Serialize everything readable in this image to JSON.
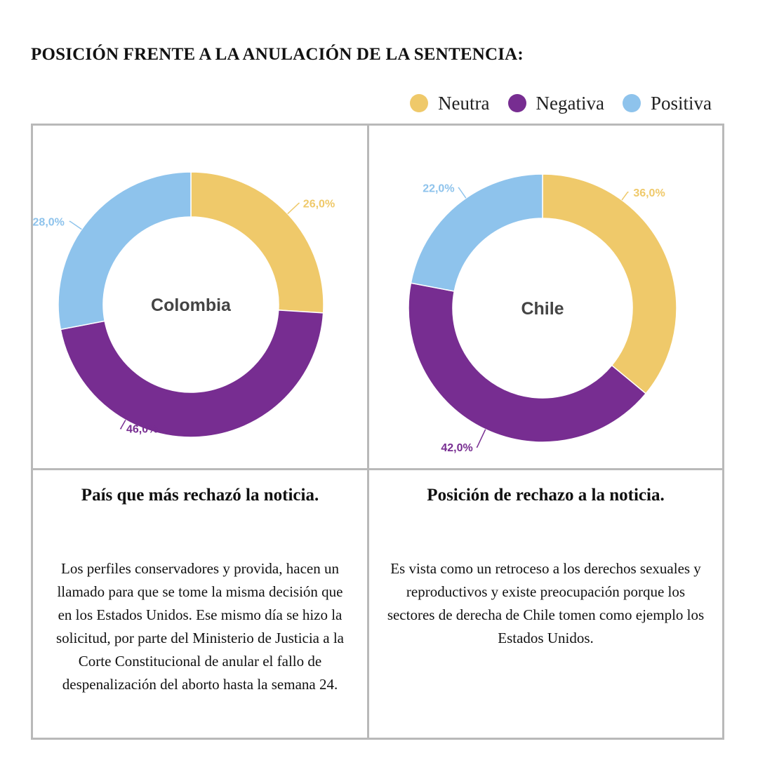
{
  "title": "POSICIÓN FRENTE A LA ANULACIÓN DE LA SENTENCIA:",
  "legend": [
    {
      "label": "Neutra",
      "color": "#efc96a"
    },
    {
      "label": "Negativa",
      "color": "#772d91"
    },
    {
      "label": "Positiva",
      "color": "#8ec3ec"
    }
  ],
  "chart_data": [
    {
      "type": "pie",
      "center_label": "Colombia",
      "categories": [
        "Neutra",
        "Negativa",
        "Positiva"
      ],
      "values": [
        26.0,
        46.0,
        28.0
      ],
      "value_labels": [
        "26,0%",
        "46,0%",
        "28,0%"
      ],
      "colors": [
        "#efc96a",
        "#772d91",
        "#8ec3ec"
      ]
    },
    {
      "type": "pie",
      "center_label": "Chile",
      "categories": [
        "Neutra",
        "Negativa",
        "Positiva"
      ],
      "values": [
        36.0,
        42.0,
        22.0
      ],
      "value_labels": [
        "36,0%",
        "42,0%",
        "22,0%"
      ],
      "colors": [
        "#efc96a",
        "#772d91",
        "#8ec3ec"
      ]
    }
  ],
  "panels": [
    {
      "heading": "País que más rechazó la noticia.",
      "body": "Los perfiles conservadores y provida, hacen un llamado para que se tome la misma decisión que en los Estados Unidos. Ese mismo día se hizo la solicitud, por parte del Ministerio de Justicia a la Corte Constitucional de anular el fallo de despenalización del aborto hasta la semana 24."
    },
    {
      "heading": "Posición de rechazo a la noticia.",
      "body": "Es vista como un retroceso a los derechos sexuales y reproductivos y existe preocupación porque los sectores de derecha de Chile tomen como ejemplo los Estados Unidos."
    }
  ]
}
